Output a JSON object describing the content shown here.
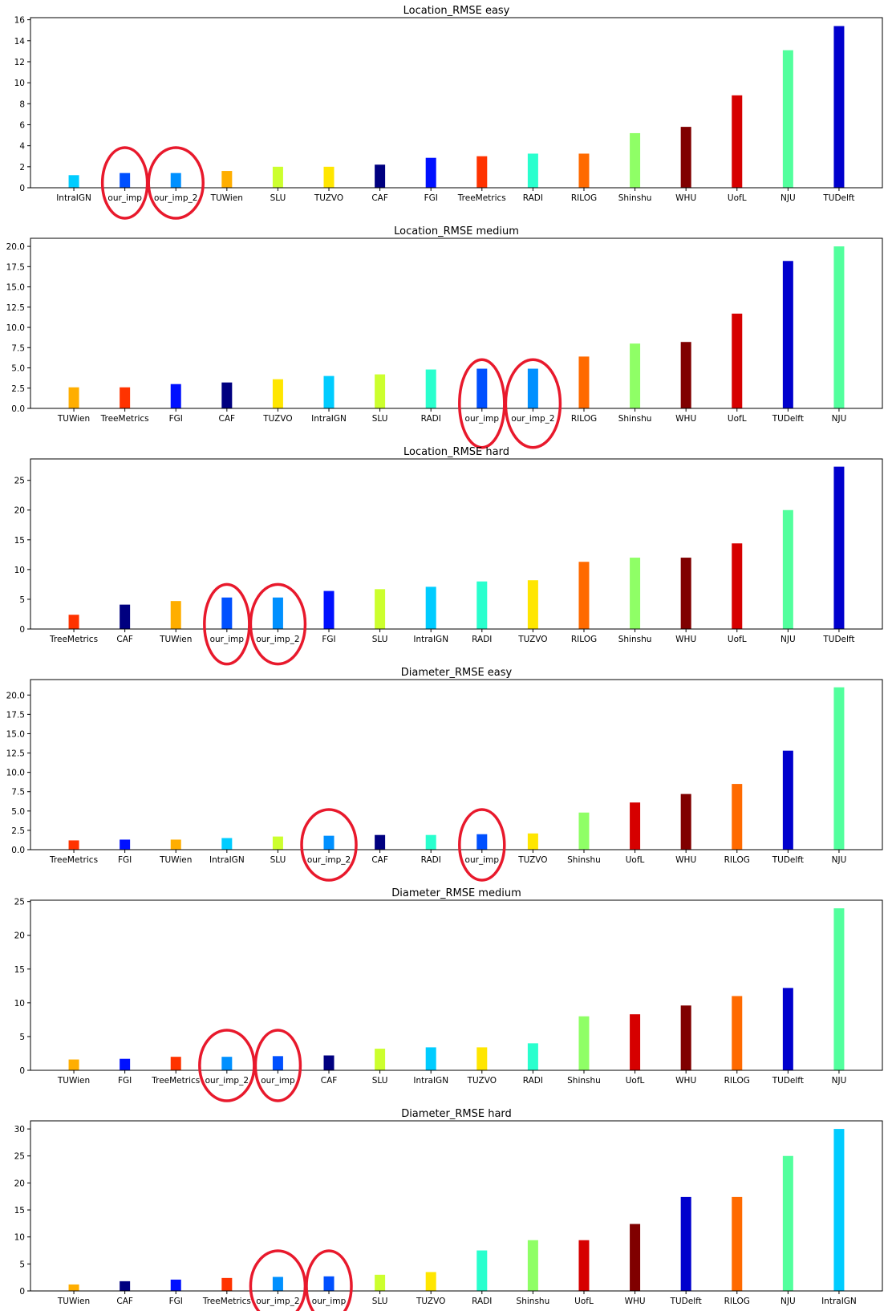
{
  "chart_data": [
    {
      "type": "bar",
      "title": "Location_RMSE easy",
      "categories": [
        "IntraIGN",
        "our_imp",
        "our_imp_2",
        "TUWien",
        "SLU",
        "TUZVO",
        "CAF",
        "FGI",
        "TreeMetrics",
        "RADI",
        "RILOG",
        "Shinshu",
        "WHU",
        "UofL",
        "NJU",
        "TUDelft"
      ],
      "values": [
        1.2,
        1.4,
        1.4,
        1.6,
        2.0,
        2.0,
        2.2,
        2.85,
        3.0,
        3.25,
        3.25,
        5.2,
        5.8,
        8.8,
        13.1,
        15.4
      ],
      "colors": [
        "#00ccff",
        "#0050ff",
        "#0090ff",
        "#ffae00",
        "#ccff2e",
        "#ffe600",
        "#000080",
        "#0010ff",
        "#ff3300",
        "#29ffce",
        "#ff6a00",
        "#8fff66",
        "#800000",
        "#d60000",
        "#52ff9d",
        "#0000cd"
      ],
      "ylim": [
        0,
        16.2
      ],
      "yticks": [
        0,
        2,
        4,
        6,
        8,
        10,
        12,
        14,
        16
      ],
      "ytick_labels": [
        "0",
        "2",
        "4",
        "6",
        "8",
        "10",
        "12",
        "14",
        "16"
      ],
      "xlabel": "",
      "ylabel": "",
      "grid": false,
      "highlighted": [
        "our_imp",
        "our_imp_2"
      ]
    },
    {
      "type": "bar",
      "title": "Location_RMSE medium",
      "categories": [
        "TUWien",
        "TreeMetrics",
        "FGI",
        "CAF",
        "TUZVO",
        "IntraIGN",
        "SLU",
        "RADI",
        "our_imp",
        "our_imp_2",
        "RILOG",
        "Shinshu",
        "WHU",
        "UofL",
        "TUDelft",
        "NJU"
      ],
      "values": [
        2.6,
        2.6,
        3.0,
        3.2,
        3.6,
        4.0,
        4.2,
        4.8,
        4.9,
        4.9,
        6.4,
        8.0,
        8.2,
        11.7,
        18.2,
        20.0
      ],
      "colors": [
        "#ffae00",
        "#ff3300",
        "#0010ff",
        "#000080",
        "#ffe600",
        "#00ccff",
        "#ccff2e",
        "#29ffce",
        "#0050ff",
        "#0090ff",
        "#ff6a00",
        "#8fff66",
        "#800000",
        "#d60000",
        "#0000cd",
        "#52ff9d"
      ],
      "ylim": [
        0,
        21
      ],
      "yticks": [
        0,
        2.5,
        5,
        7.5,
        10,
        12.5,
        15,
        17.5,
        20
      ],
      "ytick_labels": [
        "0.0",
        "2.5",
        "5.0",
        "7.5",
        "10.0",
        "12.5",
        "15.0",
        "17.5",
        "20.0"
      ],
      "xlabel": "",
      "ylabel": "",
      "grid": false,
      "highlighted": [
        "our_imp",
        "our_imp_2"
      ]
    },
    {
      "type": "bar",
      "title": "Location_RMSE hard",
      "categories": [
        "TreeMetrics",
        "CAF",
        "TUWien",
        "our_imp",
        "our_imp_2",
        "FGI",
        "SLU",
        "IntraIGN",
        "RADI",
        "TUZVO",
        "RILOG",
        "Shinshu",
        "WHU",
        "UofL",
        "NJU",
        "TUDelft"
      ],
      "values": [
        2.4,
        4.1,
        4.7,
        5.3,
        5.3,
        6.4,
        6.7,
        7.1,
        8.0,
        8.2,
        11.3,
        12.0,
        12.0,
        14.4,
        20.0,
        27.3
      ],
      "colors": [
        "#ff3300",
        "#000080",
        "#ffae00",
        "#0050ff",
        "#0090ff",
        "#0010ff",
        "#ccff2e",
        "#00ccff",
        "#29ffce",
        "#ffe600",
        "#ff6a00",
        "#8fff66",
        "#800000",
        "#d60000",
        "#52ff9d",
        "#0000cd"
      ],
      "ylim": [
        0,
        28.6
      ],
      "yticks": [
        0,
        5,
        10,
        15,
        20,
        25
      ],
      "ytick_labels": [
        "0",
        "5",
        "10",
        "15",
        "20",
        "25"
      ],
      "xlabel": "",
      "ylabel": "",
      "grid": false,
      "highlighted": [
        "our_imp",
        "our_imp_2"
      ]
    },
    {
      "type": "bar",
      "title": "Diameter_RMSE easy",
      "categories": [
        "TreeMetrics",
        "FGI",
        "TUWien",
        "IntraIGN",
        "SLU",
        "our_imp_2",
        "CAF",
        "RADI",
        "our_imp",
        "TUZVO",
        "Shinshu",
        "UofL",
        "WHU",
        "RILOG",
        "TUDelft",
        "NJU"
      ],
      "values": [
        1.2,
        1.3,
        1.3,
        1.5,
        1.7,
        1.8,
        1.9,
        1.9,
        2.0,
        2.1,
        4.8,
        6.1,
        7.2,
        8.5,
        12.8,
        21.0
      ],
      "colors": [
        "#ff3300",
        "#0010ff",
        "#ffae00",
        "#00ccff",
        "#ccff2e",
        "#0090ff",
        "#000080",
        "#29ffce",
        "#0050ff",
        "#ffe600",
        "#8fff66",
        "#d60000",
        "#800000",
        "#ff6a00",
        "#0000cd",
        "#52ff9d"
      ],
      "ylim": [
        0,
        22
      ],
      "yticks": [
        0,
        2.5,
        5,
        7.5,
        10,
        12.5,
        15,
        17.5,
        20
      ],
      "ytick_labels": [
        "0.0",
        "2.5",
        "5.0",
        "7.5",
        "10.0",
        "12.5",
        "15.0",
        "17.5",
        "20.0"
      ],
      "xlabel": "",
      "ylabel": "",
      "grid": false,
      "highlighted": [
        "our_imp",
        "our_imp_2"
      ]
    },
    {
      "type": "bar",
      "title": "Diameter_RMSE medium",
      "categories": [
        "TUWien",
        "FGI",
        "TreeMetrics",
        "our_imp_2",
        "our_imp",
        "CAF",
        "SLU",
        "IntraIGN",
        "TUZVO",
        "RADI",
        "Shinshu",
        "UofL",
        "WHU",
        "RILOG",
        "TUDelft",
        "NJU"
      ],
      "values": [
        1.6,
        1.7,
        2.0,
        2.0,
        2.1,
        2.2,
        3.2,
        3.4,
        3.4,
        4.0,
        8.0,
        8.3,
        9.6,
        11.0,
        12.2,
        24.0
      ],
      "colors": [
        "#ffae00",
        "#0010ff",
        "#ff3300",
        "#0090ff",
        "#0050ff",
        "#000080",
        "#ccff2e",
        "#00ccff",
        "#ffe600",
        "#29ffce",
        "#8fff66",
        "#d60000",
        "#800000",
        "#ff6a00",
        "#0000cd",
        "#52ff9d"
      ],
      "ylim": [
        0,
        25.2
      ],
      "yticks": [
        0,
        5,
        10,
        15,
        20,
        25
      ],
      "ytick_labels": [
        "0",
        "5",
        "10",
        "15",
        "20",
        "25"
      ],
      "xlabel": "",
      "ylabel": "",
      "grid": false,
      "highlighted": [
        "our_imp",
        "our_imp_2"
      ]
    },
    {
      "type": "bar",
      "title": "Diameter_RMSE hard",
      "categories": [
        "TUWien",
        "CAF",
        "FGI",
        "TreeMetrics",
        "our_imp_2",
        "our_imp",
        "SLU",
        "TUZVO",
        "RADI",
        "Shinshu",
        "UofL",
        "WHU",
        "TUDelft",
        "RILOG",
        "NJU",
        "IntraIGN"
      ],
      "values": [
        1.2,
        1.8,
        2.1,
        2.4,
        2.6,
        2.7,
        3.0,
        3.5,
        7.5,
        9.4,
        9.4,
        12.4,
        17.4,
        17.4,
        25.0,
        30.0
      ],
      "colors": [
        "#ffae00",
        "#000080",
        "#0010ff",
        "#ff3300",
        "#0090ff",
        "#0050ff",
        "#ccff2e",
        "#ffe600",
        "#29ffce",
        "#8fff66",
        "#d60000",
        "#800000",
        "#0000cd",
        "#ff6a00",
        "#52ff9d",
        "#00ccff"
      ],
      "ylim": [
        0,
        31.5
      ],
      "yticks": [
        0,
        5,
        10,
        15,
        20,
        25,
        30
      ],
      "ytick_labels": [
        "0",
        "5",
        "10",
        "15",
        "20",
        "25",
        "30"
      ],
      "xlabel": "",
      "ylabel": "",
      "grid": false,
      "highlighted": [
        "our_imp",
        "our_imp_2"
      ]
    }
  ],
  "highlight_color": "#e8192c"
}
